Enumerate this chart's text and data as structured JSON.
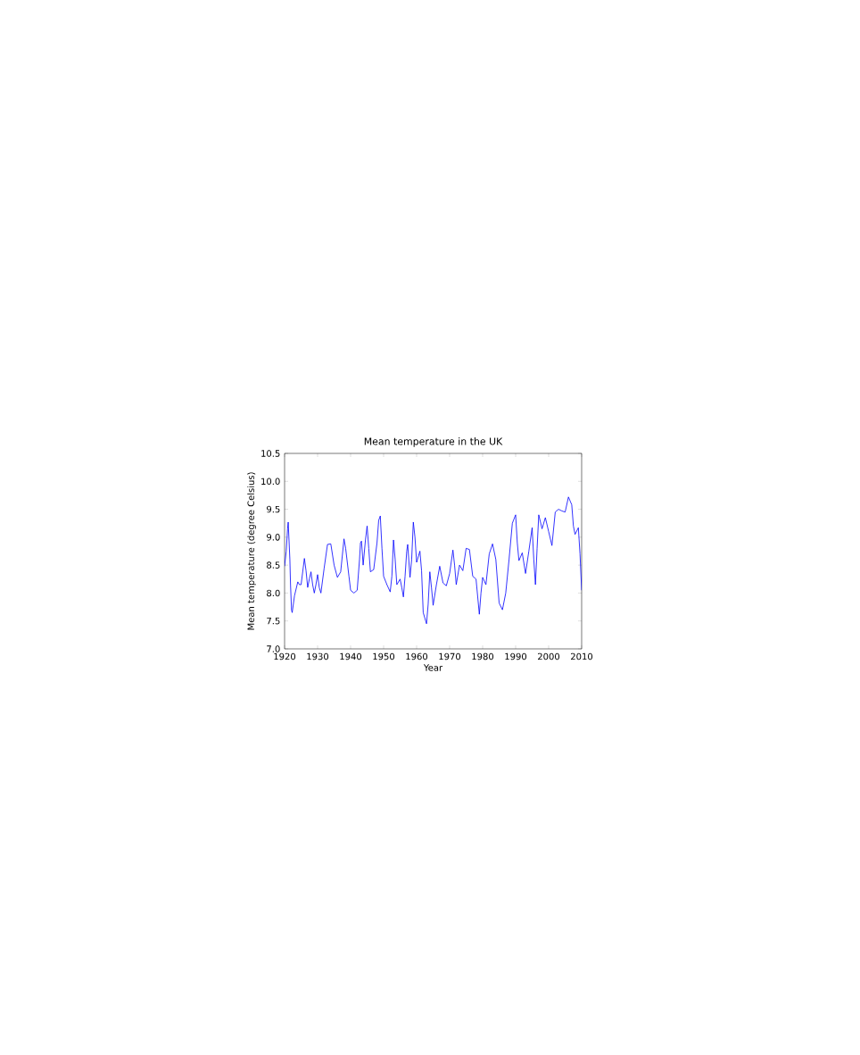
{
  "chart_data": {
    "type": "line",
    "title": "Mean temperature in the UK",
    "xlabel": "Year",
    "ylabel": "Mean temperature (degree Celsius)",
    "x": [
      1920.0,
      1920.5,
      1920.9,
      1921.1,
      1921.3,
      1921.6,
      1921.8,
      1922.1,
      1922.3,
      1923.0,
      1924.0,
      1924.5,
      1925.0,
      1926.0,
      1926.5,
      1927.0,
      1927.5,
      1928.0,
      1928.5,
      1929.0,
      1929.5,
      1930.0,
      1930.5,
      1931.0,
      1932.0,
      1933.0,
      1934.0,
      1935.0,
      1936.0,
      1937.0,
      1938.0,
      1938.5,
      1939.5,
      1940.0,
      1941.0,
      1942.0,
      1942.7,
      1943.0,
      1943.3,
      1943.8,
      1944.5,
      1945.0,
      1945.5,
      1946.0,
      1947.0,
      1948.0,
      1948.5,
      1949.0,
      1949.5,
      1950.0,
      1951.0,
      1952.0,
      1952.5,
      1953.0,
      1953.5,
      1954.0,
      1955.0,
      1955.5,
      1956.0,
      1956.5,
      1957.0,
      1957.3,
      1958.0,
      1958.5,
      1959.0,
      1959.5,
      1960.0,
      1961.0,
      1961.5,
      1962.0,
      1963.0,
      1963.5,
      1964.0,
      1964.5,
      1965.0,
      1966.0,
      1967.0,
      1968.0,
      1969.0,
      1970.0,
      1971.0,
      1971.5,
      1972.0,
      1973.0,
      1974.0,
      1975.0,
      1976.0,
      1977.0,
      1978.0,
      1979.0,
      1979.5,
      1980.0,
      1981.0,
      1982.0,
      1983.0,
      1984.0,
      1985.0,
      1986.0,
      1987.0,
      1988.0,
      1989.0,
      1990.0,
      1990.5,
      1991.0,
      1992.0,
      1993.0,
      1994.0,
      1995.0,
      1995.5,
      1996.0,
      1996.5,
      1997.0,
      1998.0,
      1999.0,
      2000.0,
      2001.0,
      2002.0,
      2003.0,
      2004.0,
      2005.0,
      2006.0,
      2007.0,
      2007.5,
      2008.0,
      2009.0,
      2009.5,
      2010.0
    ],
    "series": [
      {
        "color": "#0000ff",
        "values": [
          8.48,
          8.75,
          9.15,
          9.27,
          9.0,
          8.6,
          8.15,
          7.7,
          7.65,
          7.95,
          8.2,
          8.15,
          8.15,
          8.62,
          8.4,
          8.1,
          8.25,
          8.38,
          8.15,
          8.0,
          8.15,
          8.33,
          8.1,
          8.0,
          8.45,
          8.87,
          8.88,
          8.5,
          8.28,
          8.38,
          8.97,
          8.8,
          8.3,
          8.05,
          8.0,
          8.05,
          8.6,
          8.9,
          8.93,
          8.5,
          8.95,
          9.2,
          8.8,
          8.38,
          8.42,
          8.9,
          9.3,
          9.38,
          8.8,
          8.3,
          8.15,
          8.02,
          8.3,
          8.95,
          8.6,
          8.15,
          8.25,
          8.1,
          7.93,
          8.3,
          8.75,
          8.87,
          8.28,
          8.6,
          9.27,
          9.0,
          8.55,
          8.75,
          8.4,
          7.65,
          7.45,
          7.8,
          8.38,
          8.1,
          7.78,
          8.15,
          8.48,
          8.18,
          8.13,
          8.35,
          8.77,
          8.5,
          8.15,
          8.5,
          8.4,
          8.8,
          8.78,
          8.3,
          8.25,
          7.62,
          8.0,
          8.28,
          8.15,
          8.7,
          8.88,
          8.6,
          7.82,
          7.7,
          8.0,
          8.6,
          9.25,
          9.4,
          8.9,
          8.58,
          8.72,
          8.35,
          8.75,
          9.17,
          8.6,
          8.15,
          8.8,
          9.4,
          9.15,
          9.35,
          9.1,
          8.85,
          9.45,
          9.5,
          9.47,
          9.45,
          9.72,
          9.58,
          9.2,
          9.05,
          9.17,
          8.7,
          8.05
        ]
      }
    ],
    "xlim": [
      1920,
      2010
    ],
    "xticks": [
      1920,
      1930,
      1940,
      1950,
      1960,
      1970,
      1980,
      1990,
      2000,
      2010
    ],
    "ylim": [
      7.0,
      10.5
    ],
    "yticks": [
      {
        "value": 7.0,
        "label": "7.0"
      },
      {
        "value": 7.5,
        "label": "7.5"
      },
      {
        "value": 8.0,
        "label": "8.0"
      },
      {
        "value": 8.5,
        "label": "8.5"
      },
      {
        "value": 9.0,
        "label": "9.0"
      },
      {
        "value": 9.5,
        "label": "9.5"
      },
      {
        "value": 10.0,
        "label": "10.0"
      },
      {
        "value": 10.5,
        "label": "10.5"
      }
    ],
    "grid": false,
    "marker": "none",
    "line_style": "solid"
  }
}
